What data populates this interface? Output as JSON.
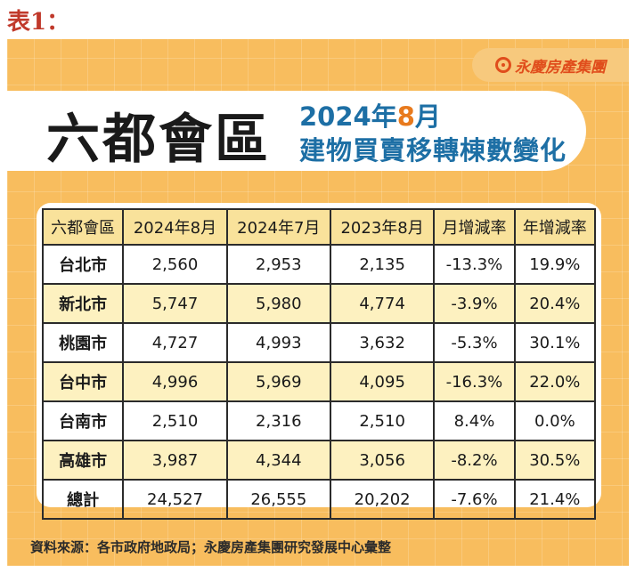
{
  "caption": "表1：",
  "brand": {
    "name": "永慶房產集團",
    "logo_icon": "yungching-logo-icon",
    "color": "#e04d1c"
  },
  "banner": {
    "title": "六都會區",
    "subtitle_year": "2024年",
    "subtitle_month": "8",
    "subtitle_month_suffix": "月",
    "subtitle_line2": "建物買賣移轉棟數變化"
  },
  "table": {
    "headers": [
      "六都會區",
      "2024年8月",
      "2024年7月",
      "2023年8月",
      "月增減率",
      "年增減率"
    ],
    "rows": [
      [
        "台北市",
        "2,560",
        "2,953",
        "2,135",
        "-13.3%",
        "19.9%"
      ],
      [
        "新北市",
        "5,747",
        "5,980",
        "4,774",
        "-3.9%",
        "20.4%"
      ],
      [
        "桃園市",
        "4,727",
        "4,993",
        "3,632",
        "-5.3%",
        "30.1%"
      ],
      [
        "台中市",
        "4,996",
        "5,969",
        "4,095",
        "-16.3%",
        "22.0%"
      ],
      [
        "台南市",
        "2,510",
        "2,316",
        "2,510",
        "8.4%",
        "0.0%"
      ],
      [
        "高雄市",
        "3,987",
        "4,344",
        "3,056",
        "-8.2%",
        "30.5%"
      ],
      [
        "總計",
        "24,527",
        "26,555",
        "20,202",
        "-7.6%",
        "21.4%"
      ]
    ]
  },
  "source": "資料來源：各市政府地政局；永慶房產集團研究發展中心彙整",
  "colors": {
    "background": "#f8bd5e",
    "title_blue": "#1d6fa5",
    "accent_orange": "#e87a1d",
    "caption_red": "#c0392b"
  }
}
